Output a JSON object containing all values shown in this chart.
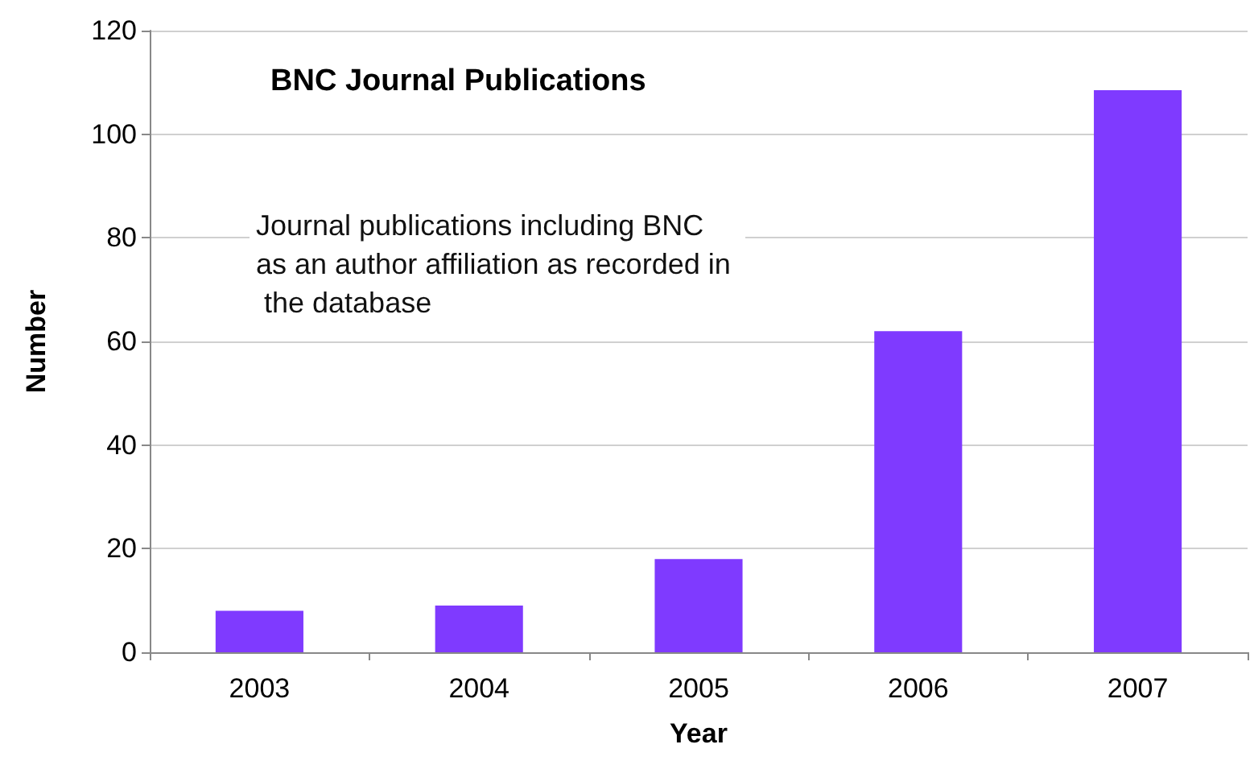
{
  "chart_data": {
    "type": "bar",
    "title": "BNC Journal Publications",
    "xlabel": "Year",
    "ylabel": "Number",
    "annotations": [
      "Journal publications including BNC as an author affiliation as recorded in the database"
    ],
    "categories": [
      "2003",
      "2004",
      "2005",
      "2006",
      "2007"
    ],
    "values": [
      8,
      9,
      18,
      62,
      108.5
    ],
    "color": "#7f3aff",
    "ylim": [
      0,
      120
    ],
    "yticks": [
      0,
      20,
      40,
      60,
      80,
      100,
      120
    ],
    "grid": "y"
  }
}
